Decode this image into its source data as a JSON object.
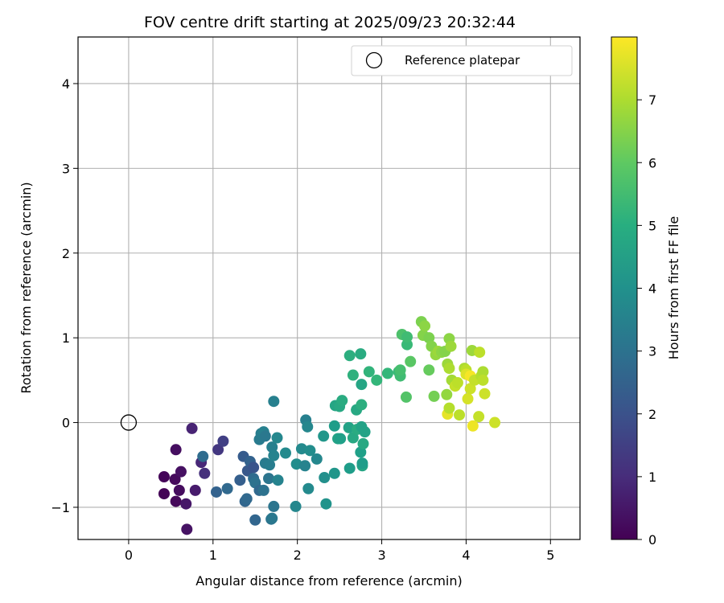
{
  "chart_data": {
    "type": "scatter",
    "title": "FOV centre drift starting at 2025/09/23 20:32:44",
    "xlabel": "Angular distance from reference (arcmin)",
    "ylabel": "Rotation from reference (arcmin)",
    "xlim": [
      -0.6,
      5.35
    ],
    "ylim": [
      -1.38,
      4.55
    ],
    "xticks": [
      0,
      1,
      2,
      3,
      4,
      5
    ],
    "yticks": [
      -1,
      0,
      1,
      2,
      3,
      4
    ],
    "grid": true,
    "legend": {
      "placement": "top-right",
      "entries": [
        "Reference platepar"
      ]
    },
    "reference_point": {
      "x": 0,
      "y": 0
    },
    "colorbar": {
      "label": "Hours from first FF file",
      "colormap": "viridis",
      "range": [
        0,
        8
      ],
      "ticks": [
        0,
        1,
        2,
        3,
        4,
        5,
        6,
        7
      ]
    },
    "points": [
      {
        "x": 0.42,
        "y": -0.84,
        "c": 0.05
      },
      {
        "x": 0.42,
        "y": -0.64,
        "c": 0.1
      },
      {
        "x": 0.56,
        "y": -0.93,
        "c": 0.15
      },
      {
        "x": 0.55,
        "y": -0.67,
        "c": 0.2
      },
      {
        "x": 0.6,
        "y": -0.8,
        "c": 0.25
      },
      {
        "x": 0.56,
        "y": -0.32,
        "c": 0.3
      },
      {
        "x": 0.62,
        "y": -0.58,
        "c": 0.35
      },
      {
        "x": 0.69,
        "y": -1.26,
        "c": 0.4
      },
      {
        "x": 0.68,
        "y": -0.96,
        "c": 0.5
      },
      {
        "x": 0.75,
        "y": -0.07,
        "c": 0.8
      },
      {
        "x": 0.79,
        "y": -0.8,
        "c": 0.6
      },
      {
        "x": 0.86,
        "y": -0.47,
        "c": 0.9
      },
      {
        "x": 0.9,
        "y": -0.6,
        "c": 1.1
      },
      {
        "x": 0.88,
        "y": -0.4,
        "c": 2.8
      },
      {
        "x": 1.04,
        "y": -0.82,
        "c": 2.5
      },
      {
        "x": 1.06,
        "y": -0.32,
        "c": 1.3
      },
      {
        "x": 1.12,
        "y": -0.22,
        "c": 1.5
      },
      {
        "x": 1.17,
        "y": -0.78,
        "c": 2.7
      },
      {
        "x": 1.32,
        "y": -0.68,
        "c": 2.4
      },
      {
        "x": 1.36,
        "y": -0.4,
        "c": 2.3
      },
      {
        "x": 1.41,
        "y": -0.57,
        "c": 2.2
      },
      {
        "x": 1.44,
        "y": -0.46,
        "c": 2.5
      },
      {
        "x": 1.48,
        "y": -0.53,
        "c": 2.1
      },
      {
        "x": 1.38,
        "y": -0.93,
        "c": 2.6
      },
      {
        "x": 1.4,
        "y": -0.9,
        "c": 2.7
      },
      {
        "x": 1.48,
        "y": -0.66,
        "c": 2.8
      },
      {
        "x": 1.5,
        "y": -0.71,
        "c": 3.0
      },
      {
        "x": 1.5,
        "y": -1.15,
        "c": 2.6
      },
      {
        "x": 1.55,
        "y": -0.8,
        "c": 2.7
      },
      {
        "x": 1.6,
        "y": -0.8,
        "c": 3.0
      },
      {
        "x": 1.55,
        "y": -0.2,
        "c": 3.3
      },
      {
        "x": 1.57,
        "y": -0.13,
        "c": 3.4
      },
      {
        "x": 1.6,
        "y": -0.11,
        "c": 3.5
      },
      {
        "x": 1.62,
        "y": -0.16,
        "c": 3.2
      },
      {
        "x": 1.62,
        "y": -0.48,
        "c": 3.3
      },
      {
        "x": 1.67,
        "y": -0.5,
        "c": 3.4
      },
      {
        "x": 1.66,
        "y": -0.66,
        "c": 3.1
      },
      {
        "x": 1.69,
        "y": -1.14,
        "c": 3.0
      },
      {
        "x": 1.7,
        "y": -1.13,
        "c": 3.2
      },
      {
        "x": 1.72,
        "y": -0.99,
        "c": 3.1
      },
      {
        "x": 1.7,
        "y": -0.29,
        "c": 3.5
      },
      {
        "x": 1.72,
        "y": -0.39,
        "c": 3.6
      },
      {
        "x": 1.72,
        "y": 0.25,
        "c": 3.5
      },
      {
        "x": 1.76,
        "y": -0.18,
        "c": 3.7
      },
      {
        "x": 1.77,
        "y": -0.68,
        "c": 3.6
      },
      {
        "x": 1.86,
        "y": -0.36,
        "c": 3.8
      },
      {
        "x": 1.98,
        "y": -0.99,
        "c": 3.7
      },
      {
        "x": 1.99,
        "y": -0.49,
        "c": 3.9
      },
      {
        "x": 2.05,
        "y": -0.31,
        "c": 3.8
      },
      {
        "x": 2.09,
        "y": -0.51,
        "c": 3.6
      },
      {
        "x": 2.1,
        "y": 0.03,
        "c": 3.5
      },
      {
        "x": 2.12,
        "y": -0.05,
        "c": 3.7
      },
      {
        "x": 2.13,
        "y": -0.78,
        "c": 3.8
      },
      {
        "x": 2.15,
        "y": -0.33,
        "c": 3.9
      },
      {
        "x": 2.23,
        "y": -0.43,
        "c": 3.7
      },
      {
        "x": 2.31,
        "y": -0.16,
        "c": 4.2
      },
      {
        "x": 2.32,
        "y": -0.65,
        "c": 4.0
      },
      {
        "x": 2.34,
        "y": -0.96,
        "c": 4.1
      },
      {
        "x": 2.44,
        "y": -0.04,
        "c": 4.4
      },
      {
        "x": 2.44,
        "y": -0.6,
        "c": 4.2
      },
      {
        "x": 2.45,
        "y": 0.2,
        "c": 4.7
      },
      {
        "x": 2.48,
        "y": -0.19,
        "c": 4.6
      },
      {
        "x": 2.5,
        "y": 0.19,
        "c": 4.8
      },
      {
        "x": 2.51,
        "y": -0.19,
        "c": 4.5
      },
      {
        "x": 2.53,
        "y": 0.26,
        "c": 4.9
      },
      {
        "x": 2.61,
        "y": -0.06,
        "c": 4.6
      },
      {
        "x": 2.62,
        "y": -0.54,
        "c": 4.4
      },
      {
        "x": 2.62,
        "y": 0.79,
        "c": 5.0
      },
      {
        "x": 2.66,
        "y": 0.56,
        "c": 5.1
      },
      {
        "x": 2.66,
        "y": -0.18,
        "c": 4.8
      },
      {
        "x": 2.71,
        "y": -0.08,
        "c": 4.9
      },
      {
        "x": 2.7,
        "y": 0.15,
        "c": 4.8
      },
      {
        "x": 2.75,
        "y": 0.81,
        "c": 4.9
      },
      {
        "x": 2.76,
        "y": 0.45,
        "c": 4.7
      },
      {
        "x": 2.76,
        "y": 0.21,
        "c": 5.0
      },
      {
        "x": 2.76,
        "y": -0.05,
        "c": 4.6
      },
      {
        "x": 2.75,
        "y": -0.35,
        "c": 4.5
      },
      {
        "x": 2.77,
        "y": -0.51,
        "c": 4.7
      },
      {
        "x": 2.77,
        "y": -0.48,
        "c": 4.4
      },
      {
        "x": 2.78,
        "y": -0.25,
        "c": 4.8
      },
      {
        "x": 2.8,
        "y": -0.11,
        "c": 4.6
      },
      {
        "x": 2.85,
        "y": 0.6,
        "c": 5.2
      },
      {
        "x": 2.94,
        "y": 0.5,
        "c": 5.3
      },
      {
        "x": 3.07,
        "y": 0.58,
        "c": 5.3
      },
      {
        "x": 3.2,
        "y": 0.6,
        "c": 5.4
      },
      {
        "x": 3.22,
        "y": 0.55,
        "c": 5.5
      },
      {
        "x": 3.22,
        "y": 0.62,
        "c": 5.6
      },
      {
        "x": 3.24,
        "y": 1.04,
        "c": 5.7
      },
      {
        "x": 3.3,
        "y": 0.92,
        "c": 5.4
      },
      {
        "x": 3.3,
        "y": 1.01,
        "c": 5.5
      },
      {
        "x": 3.29,
        "y": 0.3,
        "c": 5.8
      },
      {
        "x": 3.34,
        "y": 0.72,
        "c": 5.9
      },
      {
        "x": 3.47,
        "y": 1.19,
        "c": 6.4
      },
      {
        "x": 3.49,
        "y": 1.03,
        "c": 6.5
      },
      {
        "x": 3.51,
        "y": 1.14,
        "c": 6.6
      },
      {
        "x": 3.56,
        "y": 1.0,
        "c": 6.4
      },
      {
        "x": 3.56,
        "y": 0.62,
        "c": 6.1
      },
      {
        "x": 3.59,
        "y": 0.9,
        "c": 6.5
      },
      {
        "x": 3.62,
        "y": 0.31,
        "c": 6.3
      },
      {
        "x": 3.64,
        "y": 0.8,
        "c": 6.7
      },
      {
        "x": 3.67,
        "y": 0.84,
        "c": 6.8
      },
      {
        "x": 3.71,
        "y": 0.83,
        "c": 6.6
      },
      {
        "x": 3.75,
        "y": 0.84,
        "c": 6.5
      },
      {
        "x": 3.77,
        "y": 0.33,
        "c": 6.7
      },
      {
        "x": 3.78,
        "y": 0.69,
        "c": 6.8
      },
      {
        "x": 3.78,
        "y": 0.1,
        "c": 7.7
      },
      {
        "x": 3.8,
        "y": 0.17,
        "c": 7.1
      },
      {
        "x": 3.8,
        "y": 0.99,
        "c": 6.6
      },
      {
        "x": 3.82,
        "y": 0.9,
        "c": 6.8
      },
      {
        "x": 3.8,
        "y": 0.64,
        "c": 7.0
      },
      {
        "x": 3.83,
        "y": 0.5,
        "c": 6.9
      },
      {
        "x": 3.87,
        "y": 0.43,
        "c": 7.3
      },
      {
        "x": 3.9,
        "y": 0.47,
        "c": 7.2
      },
      {
        "x": 3.92,
        "y": 0.09,
        "c": 7.2
      },
      {
        "x": 3.98,
        "y": 0.64,
        "c": 7.0
      },
      {
        "x": 4.0,
        "y": 0.62,
        "c": 7.2
      },
      {
        "x": 4.0,
        "y": 0.57,
        "c": 7.6
      },
      {
        "x": 4.02,
        "y": 0.28,
        "c": 7.5
      },
      {
        "x": 4.05,
        "y": 0.55,
        "c": 7.9
      },
      {
        "x": 4.05,
        "y": 0.4,
        "c": 7.4
      },
      {
        "x": 4.07,
        "y": 0.85,
        "c": 6.8
      },
      {
        "x": 4.08,
        "y": -0.04,
        "c": 7.8
      },
      {
        "x": 4.1,
        "y": 0.5,
        "c": 7.3
      },
      {
        "x": 4.15,
        "y": 0.07,
        "c": 7.3
      },
      {
        "x": 4.16,
        "y": 0.83,
        "c": 7.2
      },
      {
        "x": 4.18,
        "y": 0.55,
        "c": 7.1
      },
      {
        "x": 4.2,
        "y": 0.6,
        "c": 7.0
      },
      {
        "x": 4.2,
        "y": 0.5,
        "c": 7.2
      },
      {
        "x": 4.22,
        "y": 0.34,
        "c": 7.4
      },
      {
        "x": 4.34,
        "y": 0.0,
        "c": 7.4
      }
    ]
  }
}
